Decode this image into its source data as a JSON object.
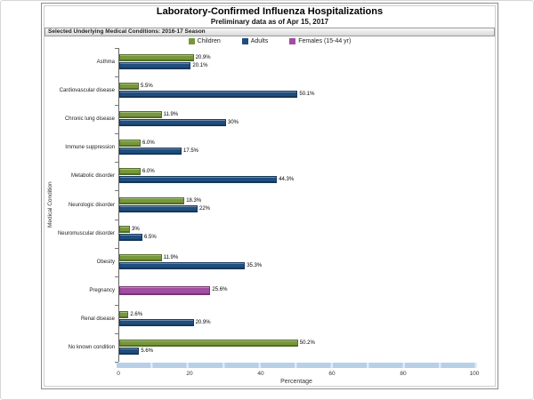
{
  "chart": {
    "title": "Laboratory-Confirmed Influenza Hospitalizations",
    "subtitle": "Preliminary data as of Apr 15, 2017",
    "panel_header": "Selected Underlying Medical Conditions: 2016-17 Season"
  },
  "colors": {
    "children": "#76983b",
    "adults": "#1f4e7e",
    "females": "#a14da0",
    "scrollbar": "#b7d0e8",
    "axis": "#666666"
  },
  "chart_data": {
    "type": "bar",
    "orientation": "horizontal",
    "title": "Laboratory-Confirmed Influenza Hospitalizations",
    "subtitle": "Preliminary data as of Apr 15, 2017",
    "xlabel": "Percentage",
    "ylabel": "Medical Condition",
    "xlim": [
      0,
      100
    ],
    "xticks": [
      0,
      20,
      40,
      60,
      80,
      100
    ],
    "grid": false,
    "legend_position": "top",
    "categories": [
      "Asthma",
      "Cardiovascular disease",
      "Chronic lung disease",
      "Immune suppression",
      "Metabolic disorder",
      "Neurologic disorder",
      "Neuromuscular disorder",
      "Obesity",
      "Pregnancy",
      "Renal disease",
      "No known condition"
    ],
    "series": [
      {
        "name": "Children",
        "color": "#76983b",
        "values": [
          20.9,
          5.5,
          11.9,
          6.0,
          6.0,
          18.3,
          3,
          11.9,
          null,
          2.6,
          50.2
        ],
        "labels": [
          "20.9%",
          "5.5%",
          "11.9%",
          "6.0%",
          "6.0%",
          "18.3%",
          "3%",
          "11.9%",
          null,
          "2.6%",
          "50.2%"
        ]
      },
      {
        "name": "Adults",
        "color": "#1f4e7e",
        "values": [
          20.1,
          50.1,
          30,
          17.5,
          44.3,
          22,
          6.5,
          35.3,
          null,
          20.9,
          5.6
        ],
        "labels": [
          "20.1%",
          "50.1%",
          "30%",
          "17.5%",
          "44.3%",
          "22%",
          "6.5%",
          "35.3%",
          null,
          "20.9%",
          "5.6%"
        ]
      },
      {
        "name": "Females (15-44 yr)",
        "color": "#a14da0",
        "values": [
          null,
          null,
          null,
          null,
          null,
          null,
          null,
          null,
          25.6,
          null,
          null
        ],
        "labels": [
          null,
          null,
          null,
          null,
          null,
          null,
          null,
          null,
          "25.6%",
          null,
          null
        ]
      }
    ]
  }
}
